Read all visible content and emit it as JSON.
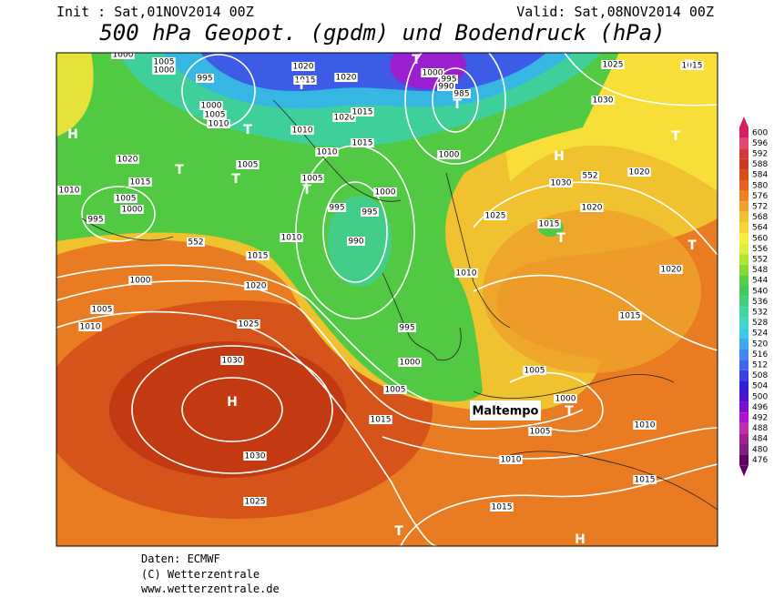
{
  "header": {
    "init": "Init : Sat,01NOV2014 00Z",
    "valid": "Valid: Sat,08NOV2014 00Z",
    "title": "500 hPa Geopot. (gpdm) und Bodendruck (hPa)"
  },
  "colorbar": {
    "labels": [
      600,
      596,
      592,
      588,
      584,
      580,
      576,
      572,
      568,
      564,
      560,
      556,
      552,
      548,
      544,
      540,
      536,
      532,
      528,
      524,
      520,
      516,
      512,
      508,
      504,
      500,
      496,
      492,
      488,
      484,
      480,
      476
    ]
  },
  "map": {
    "isobar_labels": [
      "1000",
      "1005",
      "1000",
      "995",
      "1020",
      "1020",
      "1015",
      "1000",
      "995",
      "990",
      "985",
      "1025",
      "1015",
      "1000",
      "1005",
      "1010",
      "1010",
      "1020",
      "1015",
      "1015",
      "1010",
      "1000",
      "1030",
      "1020",
      "1030",
      "552",
      "1020",
      "1015",
      "1005",
      "1005",
      "1000",
      "1010",
      "1005",
      "1000",
      "995",
      "995",
      "995",
      "990",
      "1025",
      "1015",
      "1020",
      "552",
      "1010",
      "1015",
      "1020",
      "1020",
      "1010",
      "1000",
      "1005",
      "1010",
      "1025",
      "995",
      "1015",
      "1030",
      "1000",
      "1005",
      "1005",
      "1000",
      "1015",
      "1005",
      "1010",
      "1030",
      "1010",
      "1015",
      "1025",
      "1015"
    ],
    "pressure_centers": [
      "H",
      "T",
      "T",
      "T",
      "T",
      "T",
      "T",
      "T",
      "H",
      "T",
      "T",
      "T",
      "H",
      "T",
      "T",
      "H",
      "T"
    ],
    "annotation": "Maltempo"
  },
  "footer": {
    "source": "Daten: ECMWF",
    "copyright": "(C) Wetterzentrale",
    "url": "www.wetterzentrale.de"
  }
}
